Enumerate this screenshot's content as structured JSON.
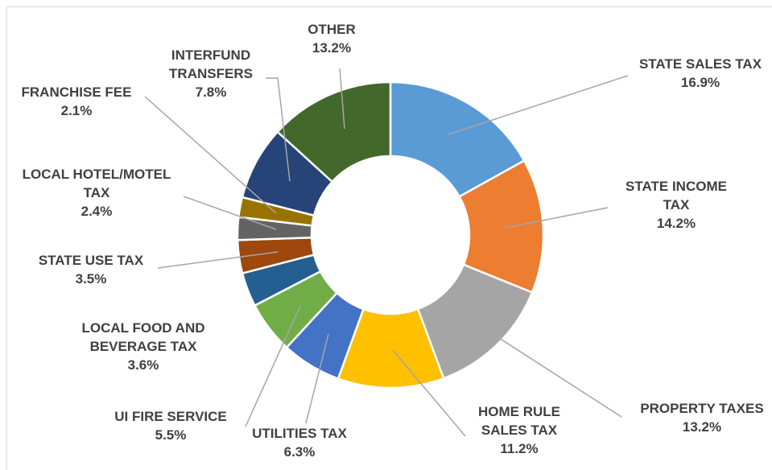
{
  "chart_data": {
    "type": "donut",
    "categories": [
      "STATE SALES TAX",
      "STATE INCOME TAX",
      "PROPERTY TAXES",
      "HOME RULE SALES TAX",
      "UTILITIES TAX",
      "UI FIRE SERVICE",
      "LOCAL FOOD AND BEVERAGE TAX",
      "STATE USE TAX",
      "LOCAL HOTEL/MOTEL TAX",
      "FRANCHISE FEE",
      "INTERFUND TRANSFERS",
      "OTHER"
    ],
    "values": [
      16.9,
      14.2,
      13.2,
      11.2,
      6.3,
      5.5,
      3.6,
      3.5,
      2.4,
      2.1,
      7.8,
      13.2
    ],
    "value_labels": [
      "16.9%",
      "14.2%",
      "13.2%",
      "11.2%",
      "6.3%",
      "5.5%",
      "3.6%",
      "3.5%",
      "2.4%",
      "2.1%",
      "7.8%",
      "13.2%"
    ],
    "colors": [
      "#5b9bd5",
      "#ed7d31",
      "#a5a5a5",
      "#ffc000",
      "#4472c4",
      "#70ad47",
      "#255e91",
      "#9e480e",
      "#636363",
      "#997300",
      "#264478",
      "#43682b"
    ]
  }
}
